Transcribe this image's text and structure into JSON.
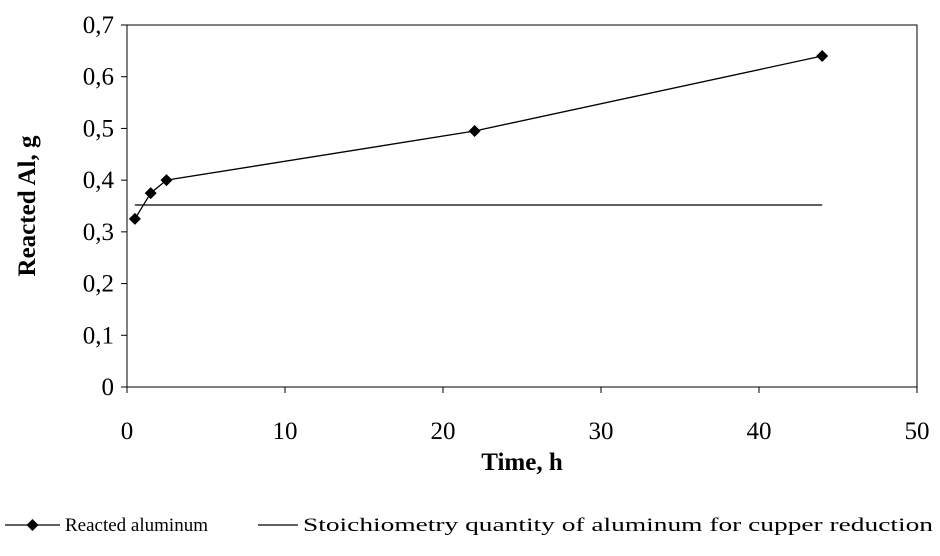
{
  "chart_data": {
    "type": "line",
    "title": "",
    "xlabel": "Time, h",
    "ylabel": "Reacted Al, g",
    "xlim": [
      0,
      50
    ],
    "ylim": [
      0,
      0.7
    ],
    "x_ticks": [
      0,
      10,
      20,
      30,
      40,
      50
    ],
    "y_ticks": [
      0,
      0.1,
      0.2,
      0.3,
      0.4,
      0.5,
      0.6,
      0.7
    ],
    "x_tick_labels": [
      "0",
      "10",
      "20",
      "30",
      "40",
      "50"
    ],
    "y_tick_labels": [
      "0",
      "0,1",
      "0,2",
      "0,3",
      "0,4",
      "0,5",
      "0,6",
      "0,7"
    ],
    "grid": false,
    "legend_position": "bottom",
    "series": [
      {
        "name": "Reacted aluminum",
        "marker": "diamond",
        "color": "#000000",
        "x": [
          0.5,
          1.5,
          2.5,
          22,
          44
        ],
        "y": [
          0.325,
          0.375,
          0.4,
          0.495,
          0.64
        ]
      },
      {
        "name": "Stoichiometry quantity of aluminum for cupper reduction",
        "marker": "none",
        "color": "#000000",
        "x": [
          0.5,
          44
        ],
        "y": [
          0.352,
          0.352
        ]
      }
    ]
  }
}
